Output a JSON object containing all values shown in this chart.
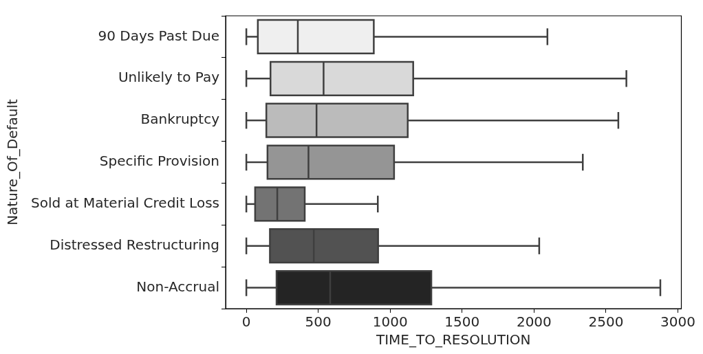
{
  "chart_data": {
    "type": "box",
    "orientation": "horizontal",
    "xlabel": "TIME_TO_RESOLUTION",
    "ylabel": "Nature_Of_Default",
    "categories": [
      "90 Days Past Due",
      "Unlikely to Pay",
      "Bankruptcy",
      "Specific Provision",
      "Sold at Material Credit Loss",
      "Distressed Restructuring",
      "Non-Accrual"
    ],
    "colors": [
      "#efefef",
      "#d9d9d9",
      "#bbbbbb",
      "#959595",
      "#737373",
      "#525252",
      "#242424"
    ],
    "boxes": [
      {
        "low": 0,
        "q1": 80,
        "median": 358,
        "q3": 886,
        "high": 2093
      },
      {
        "low": 0,
        "q1": 168,
        "median": 537,
        "q3": 1160,
        "high": 2642
      },
      {
        "low": 0,
        "q1": 139,
        "median": 488,
        "q3": 1122,
        "high": 2586
      },
      {
        "low": 0,
        "q1": 147,
        "median": 432,
        "q3": 1027,
        "high": 2339
      },
      {
        "low": 0,
        "q1": 61,
        "median": 215,
        "q3": 406,
        "high": 914
      },
      {
        "low": 0,
        "q1": 164,
        "median": 469,
        "q3": 916,
        "high": 2036
      },
      {
        "low": 0,
        "q1": 210,
        "median": 583,
        "q3": 1286,
        "high": 2878
      }
    ],
    "xlim": [
      -144,
      3024
    ],
    "xticks": [
      0,
      500,
      1000,
      1500,
      2000,
      2500,
      3000
    ],
    "grid": false,
    "legend": false
  }
}
